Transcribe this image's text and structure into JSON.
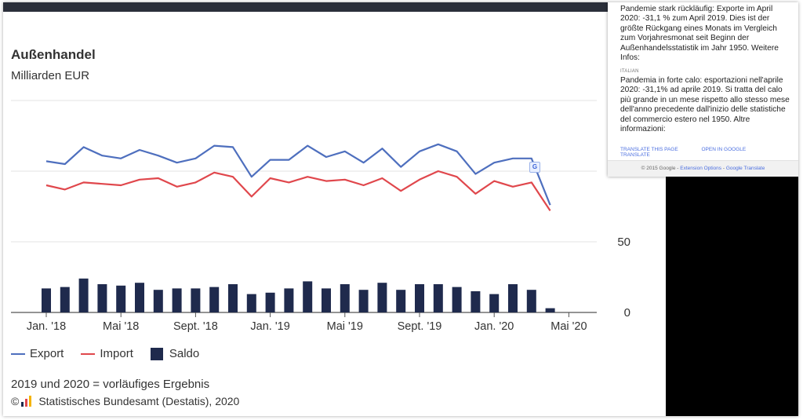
{
  "chart_data": {
    "type": "line+bar",
    "title": "Außenhandel",
    "subtitle": "Milliarden EUR",
    "x_tick_labels": [
      "Jan. '18",
      "Mai '18",
      "Sept. '18",
      "Jan. '19",
      "Mai '19",
      "Sept. '19",
      "Jan. '20",
      "Mai '20"
    ],
    "y_tick_labels": [
      "0",
      "50"
    ],
    "ylim": [
      0,
      150
    ],
    "grid": true,
    "series": [
      {
        "name": "Export",
        "color": "#4e6fbe",
        "values": [
          107,
          105,
          117,
          111,
          109,
          115,
          111,
          106,
          109,
          118,
          117,
          96,
          108,
          108,
          118,
          110,
          114,
          106,
          116,
          103,
          114,
          119,
          114,
          98,
          106,
          109,
          109,
          76
        ]
      },
      {
        "name": "Import",
        "color": "#e0474c",
        "values": [
          90,
          87,
          92,
          91,
          90,
          94,
          95,
          89,
          92,
          99,
          96,
          82,
          95,
          92,
          96,
          93,
          94,
          90,
          95,
          86,
          94,
          100,
          96,
          84,
          93,
          89,
          92,
          72
        ]
      },
      {
        "name": "Saldo",
        "color": "#1f2a4d",
        "values": [
          17,
          18,
          24,
          20,
          19,
          21,
          16,
          17,
          17,
          18,
          20,
          13,
          14,
          17,
          22,
          17,
          20,
          16,
          21,
          16,
          20,
          20,
          18,
          15,
          13,
          20,
          16,
          3
        ]
      }
    ]
  },
  "legend": {
    "export": "Export",
    "import": "Import",
    "saldo": "Saldo"
  },
  "footnote": "2019 und 2020 = vorläufiges Ergebnis",
  "source": "Statistisches Bundesamt (Destatis), 2020",
  "copyright_symbol": "©",
  "popup": {
    "original": "Pandemie stark rückläufig: Exporte im April 2020: -31,1 % zum April 2019. Dies ist der größte Rückgang eines Monats im Vergleich zum Vorjahresmonat seit Beginn der Außenhandelsstatistik im Jahr 1950. Weitere Infos:",
    "lang": "ITALIAN",
    "translation": "Pandemia in forte calo: esportazioni nell'aprile 2020: -31,1% ad aprile 2019. Si tratta del calo più grande in un mese rispetto allo stesso mese dell'anno precedente dall'inizio delle statistiche del commercio estero nel 1950. Altre informazioni:",
    "translate_page": "TRANSLATE THIS PAGE",
    "open_google": "OPEN IN GOOGLE TRANSLATE",
    "footer_prefix": "© 2015 Google -",
    "footer_options": "Extension Options",
    "footer_sep": "-",
    "footer_gt": "Google Translate"
  },
  "colors": {
    "export": "#4e6fbe",
    "import": "#e0474c",
    "saldo": "#1f2a4d"
  }
}
